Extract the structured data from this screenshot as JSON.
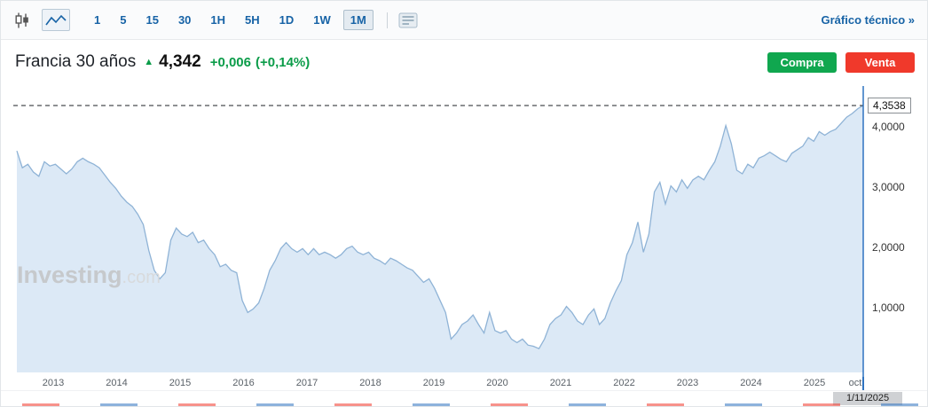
{
  "toolbar": {
    "timeframes": [
      "1",
      "5",
      "15",
      "30",
      "1H",
      "5H",
      "1D",
      "1W",
      "1M"
    ],
    "selected_timeframe": "1M",
    "icons": [
      "candlestick-chart",
      "line-chart",
      "indicators-panel"
    ],
    "technical_link": "Gráfico técnico »"
  },
  "header": {
    "title": "Francia 30 años",
    "up_arrow": "▲",
    "price": "4,342",
    "change": "+0,006",
    "change_pct": "(+0,14%)",
    "buy_label": "Compra",
    "sell_label": "Venta"
  },
  "watermark": {
    "bold": "Investing",
    "light": ".com"
  },
  "colors": {
    "accent_blue": "#1763A6",
    "up_green": "#0B9C49",
    "buy_green": "#10A74F",
    "sell_red": "#F0392B",
    "area_fill": "#DCE9F6",
    "line_stroke": "#8FB3D6",
    "cursor_blue": "#2F73C0"
  },
  "chart_data": {
    "type": "area",
    "title": "Francia 30 años",
    "xlabel": "",
    "ylabel": "",
    "frequency": "monthly",
    "x_start": "2013-01",
    "x_end": "2025-11",
    "x_labels": [
      "2013",
      "2014",
      "2015",
      "2016",
      "2017",
      "2018",
      "2019",
      "2020",
      "2021",
      "2022",
      "2023",
      "2024",
      "2025",
      "oct"
    ],
    "y_ticks": [
      {
        "label": "4,0000",
        "value": 4
      },
      {
        "label": "3,0000",
        "value": 3
      },
      {
        "label": "2,0000",
        "value": 2
      },
      {
        "label": "1,0000",
        "value": 1
      }
    ],
    "ylim": [
      -0.07,
      4.63
    ],
    "grid": false,
    "legend": false,
    "current_price": 4.3538,
    "current_price_label": "4,3538",
    "date_label": "1/11/2025",
    "values": [
      3.6,
      3.32,
      3.38,
      3.25,
      3.18,
      3.42,
      3.35,
      3.38,
      3.3,
      3.22,
      3.3,
      3.42,
      3.48,
      3.42,
      3.38,
      3.32,
      3.2,
      3.08,
      2.98,
      2.85,
      2.75,
      2.68,
      2.55,
      2.38,
      1.95,
      1.62,
      1.48,
      1.58,
      2.12,
      2.32,
      2.22,
      2.18,
      2.25,
      2.08,
      2.12,
      1.98,
      1.88,
      1.68,
      1.72,
      1.62,
      1.58,
      1.12,
      0.92,
      0.98,
      1.08,
      1.32,
      1.62,
      1.78,
      1.98,
      2.08,
      1.98,
      1.92,
      1.98,
      1.88,
      1.98,
      1.88,
      1.92,
      1.88,
      1.82,
      1.88,
      1.98,
      2.02,
      1.92,
      1.88,
      1.92,
      1.82,
      1.78,
      1.72,
      1.82,
      1.78,
      1.72,
      1.66,
      1.62,
      1.52,
      1.42,
      1.48,
      1.32,
      1.12,
      0.92,
      0.48,
      0.58,
      0.72,
      0.78,
      0.88,
      0.72,
      0.58,
      0.92,
      0.62,
      0.58,
      0.62,
      0.48,
      0.42,
      0.48,
      0.38,
      0.36,
      0.32,
      0.48,
      0.72,
      0.82,
      0.88,
      1.02,
      0.92,
      0.78,
      0.72,
      0.88,
      0.98,
      0.72,
      0.82,
      1.08,
      1.28,
      1.45,
      1.88,
      2.08,
      2.42,
      1.92,
      2.22,
      2.92,
      3.08,
      2.72,
      3.02,
      2.92,
      3.12,
      2.98,
      3.12,
      3.18,
      3.12,
      3.28,
      3.42,
      3.68,
      4.02,
      3.72,
      3.28,
      3.22,
      3.38,
      3.32,
      3.48,
      3.52,
      3.58,
      3.52,
      3.46,
      3.42,
      3.56,
      3.62,
      3.68,
      3.82,
      3.76,
      3.92,
      3.86,
      3.92,
      3.96,
      4.06,
      4.16,
      4.22,
      4.3,
      4.3538
    ]
  }
}
